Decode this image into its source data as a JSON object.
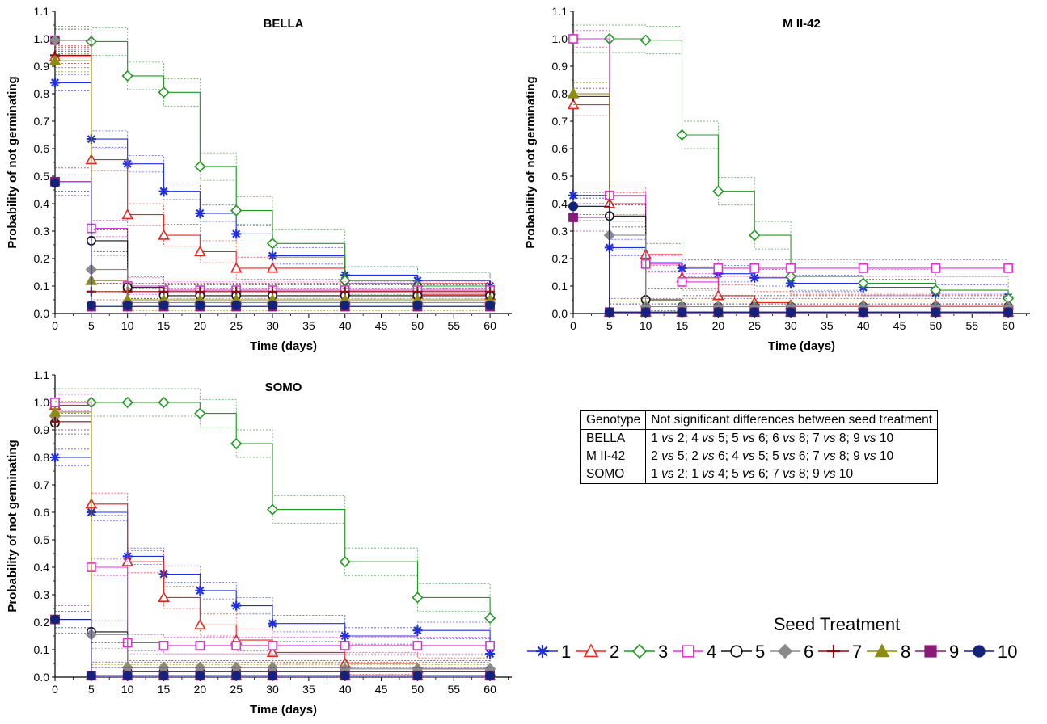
{
  "chart_data": [
    {
      "type": "line",
      "title": "BELLA",
      "xlabel": "Time (days)",
      "ylabel": "Probability of not germinating",
      "xlim": [
        0,
        63
      ],
      "ylim": [
        0,
        1.1
      ],
      "x": [
        0,
        5,
        10,
        15,
        20,
        25,
        30,
        40,
        50,
        60
      ],
      "xticks": [
        "0",
        "5",
        "10",
        "15",
        "20",
        "25",
        "30",
        "35",
        "40",
        "45",
        "50",
        "55",
        "60"
      ],
      "yticks": [
        "0.0",
        "0.1",
        "0.2",
        "0.3",
        "0.4",
        "0.5",
        "0.6",
        "0.7",
        "0.8",
        "0.9",
        "1.0",
        "1.1"
      ],
      "series": [
        {
          "name": "1",
          "values": [
            0.84,
            0.635,
            0.545,
            0.445,
            0.365,
            0.29,
            0.21,
            0.14,
            0.12,
            0.1
          ]
        },
        {
          "name": "2",
          "values": [
            0.935,
            0.56,
            0.36,
            0.285,
            0.225,
            0.165,
            0.165,
            0.08,
            0.07,
            0.065
          ]
        },
        {
          "name": "3",
          "values": [
            0.995,
            0.99,
            0.865,
            0.805,
            0.535,
            0.375,
            0.255,
            0.12,
            0.1,
            0.07
          ]
        },
        {
          "name": "4",
          "values": [
            0.995,
            0.31,
            0.1,
            0.085,
            0.085,
            0.085,
            0.085,
            0.085,
            0.085,
            0.085
          ]
        },
        {
          "name": "5",
          "values": [
            0.995,
            0.265,
            0.095,
            0.065,
            0.065,
            0.065,
            0.065,
            0.065,
            0.065,
            0.065
          ]
        },
        {
          "name": "6",
          "values": [
            0.995,
            0.16,
            0.04,
            0.04,
            0.04,
            0.04,
            0.04,
            0.04,
            0.04,
            0.04
          ]
        },
        {
          "name": "7",
          "values": [
            0.94,
            0.08,
            0.08,
            0.08,
            0.08,
            0.08,
            0.08,
            0.08,
            0.08,
            0.08
          ]
        },
        {
          "name": "8",
          "values": [
            0.92,
            0.12,
            0.05,
            0.05,
            0.05,
            0.05,
            0.05,
            0.05,
            0.05,
            0.05
          ]
        },
        {
          "name": "9",
          "values": [
            0.48,
            0.025,
            0.025,
            0.025,
            0.025,
            0.025,
            0.025,
            0.025,
            0.025,
            0.025
          ]
        },
        {
          "name": "10",
          "values": [
            0.475,
            0.03,
            0.03,
            0.03,
            0.03,
            0.03,
            0.03,
            0.03,
            0.03,
            0.03
          ]
        }
      ]
    },
    {
      "type": "line",
      "title": "M II-42",
      "xlabel": "Time (days)",
      "ylabel": "Probability of not germinating",
      "xlim": [
        0,
        63
      ],
      "ylim": [
        0,
        1.1
      ],
      "x": [
        0,
        5,
        10,
        15,
        20,
        25,
        30,
        40,
        50,
        60
      ],
      "xticks": [
        "0",
        "5",
        "10",
        "15",
        "20",
        "25",
        "30",
        "35",
        "40",
        "45",
        "50",
        "55",
        "60"
      ],
      "yticks": [
        "0.0",
        "0.1",
        "0.2",
        "0.3",
        "0.4",
        "0.5",
        "0.6",
        "0.7",
        "0.8",
        "0.9",
        "1.0",
        "1.1"
      ],
      "series": [
        {
          "name": "1",
          "values": [
            0.43,
            0.24,
            0.185,
            0.165,
            0.145,
            0.13,
            0.11,
            0.095,
            0.075,
            0.06
          ]
        },
        {
          "name": "2",
          "values": [
            0.76,
            0.4,
            0.215,
            0.13,
            0.065,
            0.04,
            0.03,
            0.03,
            0.03,
            0.03
          ]
        },
        {
          "name": "3",
          "values": [
            1.0,
            1.0,
            0.995,
            0.65,
            0.445,
            0.285,
            0.135,
            0.11,
            0.085,
            0.055
          ]
        },
        {
          "name": "4",
          "values": [
            1.0,
            0.43,
            0.18,
            0.115,
            0.165,
            0.165,
            0.165,
            0.165,
            0.165,
            0.165
          ]
        },
        {
          "name": "5",
          "values": [
            0.39,
            0.355,
            0.05,
            0.025,
            0.025,
            0.025,
            0.025,
            0.025,
            0.025,
            0.025
          ]
        },
        {
          "name": "6",
          "values": [
            0.39,
            0.285,
            0.025,
            0.025,
            0.025,
            0.025,
            0.025,
            0.025,
            0.025,
            0.025
          ]
        },
        {
          "name": "7",
          "values": [
            0.79,
            0.005,
            0.005,
            0.005,
            0.005,
            0.005,
            0.005,
            0.005,
            0.005,
            0.005
          ]
        },
        {
          "name": "8",
          "values": [
            0.8,
            0.005,
            0.005,
            0.005,
            0.005,
            0.005,
            0.005,
            0.005,
            0.005,
            0.005
          ]
        },
        {
          "name": "9",
          "values": [
            0.35,
            0.005,
            0.005,
            0.005,
            0.005,
            0.005,
            0.005,
            0.005,
            0.005,
            0.005
          ]
        },
        {
          "name": "10",
          "values": [
            0.39,
            0.005,
            0.005,
            0.005,
            0.005,
            0.005,
            0.005,
            0.005,
            0.005,
            0.005
          ]
        }
      ]
    },
    {
      "type": "line",
      "title": "SOMO",
      "xlabel": "Time (days)",
      "ylabel": "Probability of not germinating",
      "xlim": [
        0,
        63
      ],
      "ylim": [
        0,
        1.1
      ],
      "x": [
        0,
        5,
        10,
        15,
        20,
        25,
        30,
        40,
        50,
        60
      ],
      "xticks": [
        "0",
        "5",
        "10",
        "15",
        "20",
        "25",
        "30",
        "35",
        "40",
        "45",
        "50",
        "55",
        "60"
      ],
      "yticks": [
        "0.0",
        "0.1",
        "0.2",
        "0.3",
        "0.4",
        "0.5",
        "0.6",
        "0.7",
        "0.8",
        "0.9",
        "1.0",
        "1.1"
      ],
      "series": [
        {
          "name": "1",
          "values": [
            0.8,
            0.6,
            0.44,
            0.375,
            0.315,
            0.26,
            0.195,
            0.15,
            0.17,
            0.085
          ]
        },
        {
          "name": "2",
          "values": [
            0.99,
            0.63,
            0.42,
            0.29,
            0.19,
            0.135,
            0.09,
            0.05,
            0.03,
            0.02
          ]
        },
        {
          "name": "3",
          "values": [
            1.0,
            1.0,
            1.0,
            1.0,
            0.96,
            0.85,
            0.61,
            0.42,
            0.29,
            0.215
          ]
        },
        {
          "name": "4",
          "values": [
            1.0,
            0.4,
            0.125,
            0.115,
            0.115,
            0.115,
            0.115,
            0.115,
            0.115,
            0.115
          ]
        },
        {
          "name": "5",
          "values": [
            0.925,
            0.165,
            0.02,
            0.02,
            0.02,
            0.02,
            0.02,
            0.02,
            0.02,
            0.02
          ]
        },
        {
          "name": "6",
          "values": [
            0.95,
            0.155,
            0.035,
            0.035,
            0.035,
            0.035,
            0.035,
            0.03,
            0.03,
            0.03
          ]
        },
        {
          "name": "7",
          "values": [
            0.93,
            0.005,
            0.005,
            0.005,
            0.005,
            0.005,
            0.005,
            0.005,
            0.005,
            0.005
          ]
        },
        {
          "name": "8",
          "values": [
            0.965,
            0.005,
            0.005,
            0.005,
            0.005,
            0.005,
            0.005,
            0.005,
            0.005,
            0.005
          ]
        },
        {
          "name": "9",
          "values": [
            0.21,
            0.005,
            0.005,
            0.005,
            0.005,
            0.005,
            0.005,
            0.005,
            0.005,
            0.005
          ]
        },
        {
          "name": "10",
          "values": [
            0.21,
            0.005,
            0.005,
            0.005,
            0.005,
            0.005,
            0.005,
            0.005,
            0.005,
            0.005
          ]
        }
      ]
    }
  ],
  "series_styles": [
    {
      "name": "1",
      "color": "#1f2fe0",
      "marker": "asterisk"
    },
    {
      "name": "2",
      "color": "#e8261f",
      "marker": "triangle-open"
    },
    {
      "name": "3",
      "color": "#1f9a1f",
      "marker": "diamond-open"
    },
    {
      "name": "4",
      "color": "#e030d8",
      "marker": "square-open"
    },
    {
      "name": "5",
      "color": "#111111",
      "marker": "circle-open"
    },
    {
      "name": "6",
      "color": "#8a8a8a",
      "marker": "diamond-filled"
    },
    {
      "name": "7",
      "color": "#8a0f14",
      "marker": "plus"
    },
    {
      "name": "8",
      "color": "#8c8c10",
      "marker": "triangle-filled"
    },
    {
      "name": "9",
      "color": "#8a1a7a",
      "marker": "square-filled"
    },
    {
      "name": "10",
      "color": "#14237a",
      "marker": "circle-filled"
    }
  ],
  "table": {
    "headers": [
      "Genotype",
      "Not significant differences between seed treatment"
    ],
    "rows": [
      [
        "BELLA",
        "1 vs 2; 4 vs 5; 5 vs 6; 6 vs 8; 7 vs 8; 9 vs 10"
      ],
      [
        "M II-42",
        "2 vs 5; 2 vs 6; 4 vs 5; 5 vs 6; 7 vs 8; 9 vs 10"
      ],
      [
        "SOMO",
        "1 vs 2; 1 vs 4; 5 vs 6; 7 vs 8; 9 vs 10"
      ]
    ]
  },
  "legend": {
    "title": "Seed Treatment",
    "items": [
      "1",
      "2",
      "3",
      "4",
      "5",
      "6",
      "7",
      "8",
      "9",
      "10"
    ]
  }
}
